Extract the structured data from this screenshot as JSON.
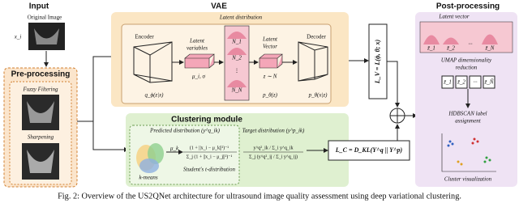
{
  "sections": {
    "input": "Input",
    "vae": "VAE",
    "post": "Post-processing"
  },
  "input": {
    "original": "Original Image",
    "x": "x_i",
    "pre_title": "Pre-processing",
    "fuzzy": "Fuzzy Filtering",
    "sharpening": "Sharpening"
  },
  "vae": {
    "latent_distribution": "Latent distribution",
    "encoder": "Encoder",
    "q": "q_ϕ(z|x)",
    "latent_variables": [
      "Latent",
      "variables"
    ],
    "mu_sigma": "μ_i, σ",
    "n1": "N_1",
    "n2": "N_2",
    "dots": "⋮",
    "nn": "N_N",
    "latent_vector": [
      "Latent",
      "Vector"
    ],
    "z": "z ∼ N",
    "pz": "p_θ(z)",
    "decoder": "Decoder",
    "pxz": "p_θ(x|z)",
    "loss": "L_V = L(ϕ, θ; x)"
  },
  "clustering": {
    "title": "Clustering module",
    "predicted": "Predicted distribution (y^q_ik)",
    "mu_k": "μ_k",
    "pred_num": "(1 + ||x_i − μ_k||²)⁻¹",
    "pred_den": "Σ_j (1 + ||x_i − μ_j||²)⁻¹",
    "student": "Student's t-distribution",
    "kmeans": "k-means",
    "target": "Target distribution (y^p_ik)",
    "target_num": "y^q²_ik / Σ_i y^q_ik",
    "target_den": "Σ_j (y^q²_ij / Σ_i y^q_ij)",
    "loss": "L_C = D_KL(Y^q || Y^p)"
  },
  "post": {
    "latent_vector": "Latent vector",
    "z_labels": [
      "z̃_1",
      "z̃_2",
      "···",
      "z̃_N"
    ],
    "umap": [
      "UMAP dimensionality",
      "reduction"
    ],
    "boxes": [
      "z̃_1",
      "z̃_2",
      "···",
      "z̃_Ñ"
    ],
    "hdbscan": [
      "HDBSCAN label",
      "assignment"
    ],
    "cluster_vis": "Cluster visualization"
  },
  "caption": "Fig. 2: Overview of the US2QNet architecture for ultrasound image quality assessment using deep variational clustering."
}
